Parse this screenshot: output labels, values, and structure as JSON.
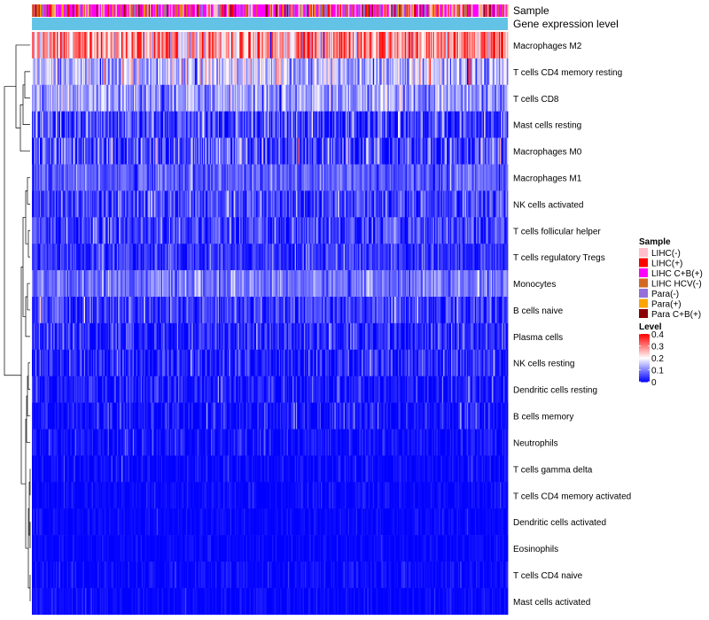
{
  "chart_data": {
    "type": "heatmap",
    "title": "",
    "annotations": {
      "sample_label": "Sample",
      "gene_label": "Gene expression level",
      "gene_bar_color": "#63c3e6"
    },
    "rows": [
      {
        "name": "Macrophages M2",
        "mean": 0.28,
        "sd": 0.08
      },
      {
        "name": "T cells CD4 memory resting",
        "mean": 0.14,
        "sd": 0.06
      },
      {
        "name": "T cells CD8",
        "mean": 0.12,
        "sd": 0.05
      },
      {
        "name": "Mast cells resting",
        "mean": 0.05,
        "sd": 0.05
      },
      {
        "name": "Macrophages M0",
        "mean": 0.05,
        "sd": 0.06
      },
      {
        "name": "Macrophages M1",
        "mean": 0.07,
        "sd": 0.03
      },
      {
        "name": "NK cells activated",
        "mean": 0.05,
        "sd": 0.04
      },
      {
        "name": "T cells follicular helper",
        "mean": 0.05,
        "sd": 0.04
      },
      {
        "name": "T cells regulatory  Tregs",
        "mean": 0.04,
        "sd": 0.03
      },
      {
        "name": "Monocytes",
        "mean": 0.09,
        "sd": 0.03
      },
      {
        "name": "B cells naive",
        "mean": 0.04,
        "sd": 0.04
      },
      {
        "name": "Plasma cells",
        "mean": 0.03,
        "sd": 0.04
      },
      {
        "name": "NK cells resting",
        "mean": 0.02,
        "sd": 0.04
      },
      {
        "name": "Dendritic cells resting",
        "mean": 0.02,
        "sd": 0.03
      },
      {
        "name": "B cells memory",
        "mean": 0.01,
        "sd": 0.03
      },
      {
        "name": "Neutrophils",
        "mean": 0.01,
        "sd": 0.02
      },
      {
        "name": "T cells gamma delta",
        "mean": 0.005,
        "sd": 0.015
      },
      {
        "name": "T cells CD4 memory activated",
        "mean": 0.005,
        "sd": 0.012
      },
      {
        "name": "Dendritic cells activated",
        "mean": 0.004,
        "sd": 0.01
      },
      {
        "name": "Eosinophils",
        "mean": 0.003,
        "sd": 0.01
      },
      {
        "name": "T cells CD4 naive",
        "mean": 0.005,
        "sd": 0.015
      },
      {
        "name": "Mast cells activated",
        "mean": 0.004,
        "sd": 0.012
      }
    ],
    "n_samples": 420,
    "legend_sample": {
      "title": "Sample",
      "items": [
        {
          "label": "LIHC(-)",
          "color": "#ffc0cb",
          "weight": 0.15
        },
        {
          "label": "LIHC(+)",
          "color": "#ff0000",
          "weight": 0.1
        },
        {
          "label": "LIHC C+B(+)",
          "color": "#ff00ff",
          "weight": 0.38
        },
        {
          "label": "LIHC HCV(-)",
          "color": "#d2691e",
          "weight": 0.08
        },
        {
          "label": "Para(-)",
          "color": "#9370db",
          "weight": 0.12
        },
        {
          "label": "Para(+)",
          "color": "#ffa500",
          "weight": 0.09
        },
        {
          "label": "Para C+B(+)",
          "color": "#8b0000",
          "weight": 0.08
        }
      ]
    },
    "legend_level": {
      "title": "Level",
      "ticks": [
        "0.4",
        "0.3",
        "0.2",
        "0.1",
        "0"
      ],
      "range": [
        0,
        0.4
      ],
      "colors": {
        "low": "#0000ff",
        "mid": "#ffffff",
        "high": "#ff0000"
      }
    }
  }
}
